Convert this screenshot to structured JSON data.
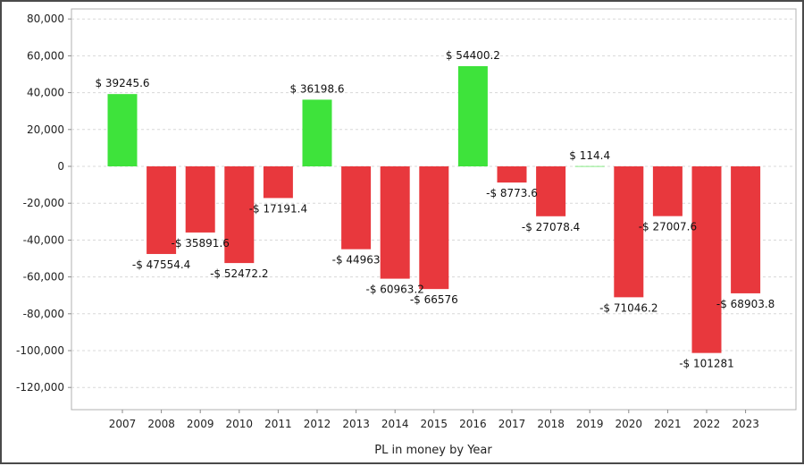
{
  "chart_data": {
    "type": "bar",
    "xlabel": "PL in money by Year",
    "ylabel": "",
    "categories": [
      "2007",
      "2008",
      "2009",
      "2010",
      "2011",
      "2012",
      "2013",
      "2014",
      "2015",
      "2016",
      "2017",
      "2018",
      "2019",
      "2020",
      "2021",
      "2022",
      "2023"
    ],
    "values": [
      39245.6,
      -47554.4,
      -35891.6,
      -52472.2,
      -17191.4,
      36198.6,
      -44963.0,
      -60963.2,
      -66576,
      54400.2,
      -8773.6,
      -27078.4,
      114.4,
      -71046.2,
      -27007.6,
      -101281,
      -68903.8
    ],
    "data_labels": [
      "$ 39245.6",
      "-$ 47554.4",
      "-$ 35891.6",
      "-$ 52472.2",
      "-$ 17191.4",
      "$ 36198.6",
      "-$ 44963",
      "-$ 60963.2",
      "-$ 66576",
      "$ 54400.2",
      "-$ 8773.6",
      "-$ 27078.4",
      "$ 114.4",
      "-$ 71046.2",
      "-$ 27007.6",
      "-$ 101281",
      "-$ 68903.8"
    ],
    "y_ticks": [
      "80,000",
      "60,000",
      "40,000",
      "20,000",
      "0",
      "-20,000",
      "-40,000",
      "-60,000",
      "-80,000",
      "-100,000",
      "-120,000"
    ],
    "ylim": [
      -131000,
      86000
    ],
    "grid": true,
    "colors": {
      "positive": "#3ee33b",
      "negative": "#e8383d",
      "grid": "#d8d8d8",
      "axis": "#8a8a8a"
    }
  }
}
